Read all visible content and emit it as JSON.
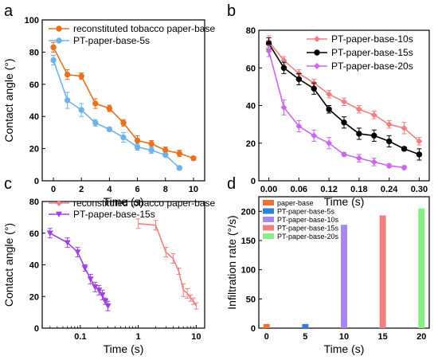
{
  "chart_data": [
    {
      "panel_label": "a",
      "type": "line",
      "xlabel": "Time (s)",
      "ylabel": "Contact angle (°)",
      "xlim": [
        -0.8,
        10.8
      ],
      "ylim": [
        0,
        100
      ],
      "xticks": [
        0,
        2,
        4,
        6,
        8,
        10
      ],
      "yticks": [
        0,
        20,
        40,
        60,
        80,
        100
      ],
      "legend_position": "top-right",
      "series": [
        {
          "name": "reconstituted tobacco paper-base",
          "color": "#e8701f",
          "marker": "circle",
          "x": [
            0,
            1,
            2,
            3,
            4,
            5,
            6,
            7,
            8,
            9,
            10
          ],
          "y": [
            83,
            66,
            65,
            48,
            45,
            36,
            25,
            23,
            19,
            17,
            14
          ],
          "err": [
            3,
            3,
            2,
            3,
            2,
            2,
            3,
            2,
            2,
            2,
            1
          ]
        },
        {
          "name": "PT-paper-base-5s",
          "color": "#6db3e8",
          "marker": "circle",
          "x": [
            0,
            1,
            2,
            3,
            4,
            5,
            6,
            7,
            8,
            9
          ],
          "y": [
            75,
            50,
            44,
            36,
            32,
            27,
            21,
            19,
            16,
            8
          ],
          "err": [
            3,
            5,
            4,
            2,
            1,
            3,
            2,
            2,
            1,
            1
          ]
        }
      ]
    },
    {
      "panel_label": "b",
      "type": "line",
      "xlabel": "Time (s)",
      "ylabel": "",
      "xlim": [
        -0.02,
        0.32
      ],
      "ylim": [
        0,
        80
      ],
      "xticks": [
        "0.00",
        "0.06",
        "0.12",
        "0.18",
        "0.24",
        "0.30"
      ],
      "yticks": [
        0,
        20,
        40,
        60,
        80
      ],
      "legend_position": "top-right",
      "series": [
        {
          "name": "PT-paper-base-10s",
          "color": "#f08080",
          "marker": "diamond",
          "x": [
            0,
            0.03,
            0.06,
            0.09,
            0.12,
            0.15,
            0.18,
            0.21,
            0.24,
            0.27,
            0.3
          ],
          "y": [
            74,
            64,
            57,
            52,
            46,
            42,
            38,
            35,
            30,
            28,
            21
          ],
          "err": [
            3,
            2,
            2,
            2,
            2,
            2,
            2,
            2,
            2,
            3,
            2
          ]
        },
        {
          "name": "PT-paper-base-15s",
          "color": "#000000",
          "marker": "circle",
          "x": [
            0,
            0.03,
            0.06,
            0.09,
            0.12,
            0.15,
            0.18,
            0.21,
            0.24,
            0.27,
            0.3
          ],
          "y": [
            73,
            60,
            54,
            49,
            38,
            31,
            25,
            24,
            21,
            17,
            14
          ],
          "err": [
            3,
            3,
            3,
            3,
            2,
            3,
            3,
            3,
            3,
            1,
            3
          ]
        },
        {
          "name": "PT-paper-base-20s",
          "color": "#cc66ee",
          "marker": "diamond",
          "x": [
            0,
            0.03,
            0.06,
            0.09,
            0.12,
            0.15,
            0.18,
            0.21,
            0.24,
            0.27
          ],
          "y": [
            69,
            39,
            29,
            24,
            20,
            14,
            12,
            10,
            8,
            7
          ],
          "err": [
            3,
            4,
            3,
            3,
            3,
            1,
            2,
            2,
            1,
            1
          ]
        }
      ]
    },
    {
      "panel_label": "c",
      "type": "line",
      "xlabel": "Time (s)",
      "ylabel": "Contact angle (°)",
      "xscale": "log",
      "xlim": [
        0.022,
        14
      ],
      "ylim": [
        0,
        80
      ],
      "xticks": [
        "0.1",
        "1",
        "10"
      ],
      "yticks": [
        0,
        20,
        40,
        60,
        80
      ],
      "legend_position": "top",
      "series": [
        {
          "name": "reconstituted tobacco paper-base",
          "color": "#f08080",
          "marker": "none",
          "x": [
            1,
            2,
            3,
            4,
            5,
            6,
            7,
            8,
            9,
            10
          ],
          "y": [
            66,
            65,
            48,
            44,
            36,
            24,
            22,
            19,
            17,
            14
          ],
          "err": [
            3,
            3,
            3,
            3,
            2,
            4,
            3,
            2,
            2,
            2
          ]
        },
        {
          "name": "PT-paper-base-15s",
          "color": "#a040e0",
          "marker": "triangle-down",
          "x": [
            0.03,
            0.06,
            0.09,
            0.12,
            0.15,
            0.18,
            0.21,
            0.24,
            0.27,
            0.3
          ],
          "y": [
            60,
            54,
            48,
            38,
            31,
            26,
            24,
            21,
            17,
            14
          ],
          "err": [
            3,
            3,
            3,
            2,
            3,
            3,
            3,
            3,
            2,
            3
          ]
        }
      ]
    },
    {
      "panel_label": "d",
      "type": "bar",
      "xlabel": "Time (s)",
      "ylabel": "Infiltration rate (°/s)",
      "xlim": [
        -1,
        21
      ],
      "ylim": [
        0,
        225
      ],
      "xticks": [
        0,
        5,
        10,
        15,
        20
      ],
      "yticks": [
        0,
        50,
        100,
        150,
        200
      ],
      "legend_position": "top-left",
      "series": [
        {
          "name": "paper-base",
          "color": "#f07030",
          "x": 0,
          "value": 7
        },
        {
          "name": "PT-paper-base-5s",
          "color": "#2f7fd8",
          "x": 5,
          "value": 7
        },
        {
          "name": "PT-paper-base-10s",
          "color": "#a888f0",
          "x": 10,
          "value": 177
        },
        {
          "name": "PT-paper-base-15s",
          "color": "#f08080",
          "x": 15,
          "value": 193
        },
        {
          "name": "PT-paper-base-20s",
          "color": "#88ee88",
          "x": 20,
          "value": 205
        }
      ]
    }
  ]
}
